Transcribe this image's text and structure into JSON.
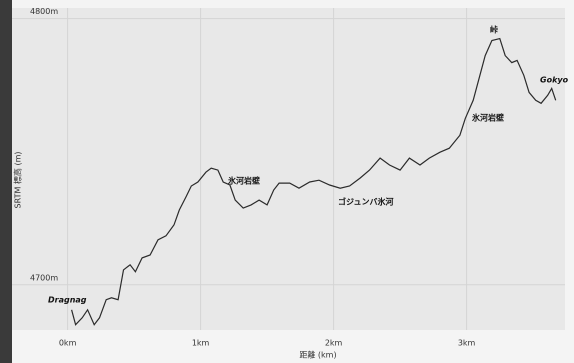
{
  "chart_data": {
    "type": "line",
    "x_label": "距離 (km)",
    "y_label": "SRTM 標高 (m)",
    "annotations": [
      "Dragnag",
      "氷河岩壁",
      "ゴジュンバ氷河",
      "氷河岩壁",
      "峠",
      "Gokyo"
    ],
    "xlim": [
      -0.17,
      3.74
    ],
    "ylim": [
      4683,
      4804
    ],
    "xticks": [
      {
        "value": 0,
        "label": "0km"
      },
      {
        "value": 1,
        "label": "1km"
      },
      {
        "value": 2,
        "label": "2km"
      },
      {
        "value": 3,
        "label": "3km"
      }
    ],
    "yticks": [
      {
        "value": 4700,
        "label": "4700m"
      },
      {
        "value": 4800,
        "label": "4800m"
      }
    ],
    "grid": true,
    "series": [
      {
        "color": "#2b2b2b",
        "x": [
          0.03,
          0.06,
          0.11,
          0.15,
          0.2,
          0.24,
          0.29,
          0.33,
          0.38,
          0.42,
          0.47,
          0.51,
          0.56,
          0.62,
          0.68,
          0.74,
          0.8,
          0.84,
          0.89,
          0.93,
          0.98,
          1.04,
          1.08,
          1.13,
          1.17,
          1.22,
          1.26,
          1.32,
          1.38,
          1.44,
          1.5,
          1.55,
          1.59,
          1.67,
          1.74,
          1.82,
          1.89,
          1.97,
          2.05,
          2.12,
          2.2,
          2.27,
          2.35,
          2.42,
          2.5,
          2.57,
          2.65,
          2.72,
          2.8,
          2.87,
          2.95,
          2.99,
          3.05,
          3.1,
          3.14,
          3.19,
          3.25,
          3.29,
          3.34,
          3.38,
          3.43,
          3.47,
          3.52,
          3.56,
          3.61,
          3.64,
          3.67
        ],
        "values": [
          4690.6,
          4685,
          4687.6,
          4690.6,
          4685,
          4687.6,
          4694.4,
          4695.1,
          4694.4,
          4705.6,
          4707.5,
          4704.9,
          4710.1,
          4711.2,
          4716.9,
          4718.4,
          4722.5,
          4728.1,
          4733,
          4737.1,
          4738.6,
          4742.3,
          4743.8,
          4743.1,
          4738.6,
          4737.5,
          4731.8,
          4728.8,
          4730,
          4731.8,
          4730,
          4735.6,
          4738.2,
          4738.2,
          4736.3,
          4738.6,
          4739.3,
          4737.5,
          4736.3,
          4737.1,
          4740.1,
          4743.1,
          4747.6,
          4745,
          4743.1,
          4747.6,
          4745,
          4747.6,
          4749.8,
          4751.3,
          4756.2,
          4762.5,
          4769.3,
          4778.7,
          4786.1,
          4791.8,
          4792.5,
          4786.1,
          4783.5,
          4784.3,
          4778.7,
          4772.3,
          4769.3,
          4768.2,
          4771.2,
          4773.8,
          4769.3
        ]
      }
    ]
  }
}
